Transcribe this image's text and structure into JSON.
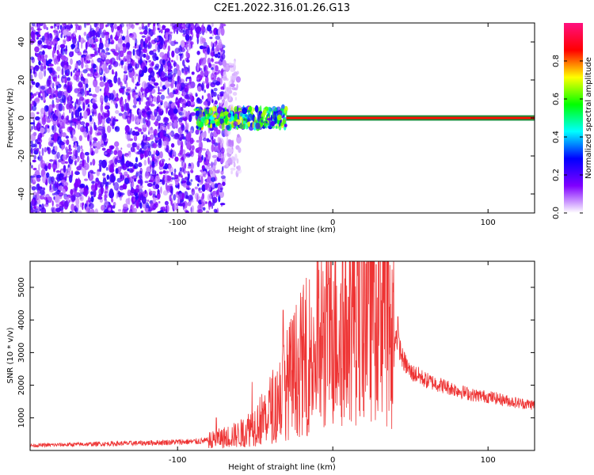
{
  "title": "C2E1.2022.316.01.26.G13",
  "chart_data": [
    {
      "type": "heatmap",
      "xlabel": "Height of straight line (km)",
      "ylabel": "Frequency (Hz)",
      "xlim": [
        -195,
        130
      ],
      "ylim": [
        -50,
        50
      ],
      "xticks": [
        -100,
        0,
        100
      ],
      "yticks": [
        -40,
        -20,
        0,
        20,
        40
      ],
      "xtick_labels": [
        "-100",
        "0",
        "100"
      ],
      "ytick_labels": [
        "-40",
        "-20",
        "0",
        "20",
        "40"
      ],
      "colorbar": {
        "label": "Normalized spectral amplitude",
        "range": [
          0.0,
          1.0
        ],
        "ticks": [
          0.0,
          0.2,
          0.4,
          0.6,
          0.8
        ],
        "tick_labels": [
          "0.0",
          "0.2",
          "0.4",
          "0.6",
          "0.8"
        ],
        "colors": [
          "#ffffff",
          "#8000ff",
          "#0000ff",
          "#00ffff",
          "#00ff00",
          "#ffff00",
          "#ff0000",
          "#ff1080"
        ]
      },
      "regions": [
        {
          "x_range": [
            -195,
            -90
          ],
          "freq_range": [
            -50,
            50
          ],
          "level": 0.15,
          "description": "broadband noise"
        },
        {
          "x_range": [
            -88,
            -70
          ],
          "freq_range": [
            -50,
            50
          ],
          "level": 0.15,
          "description": "broadband noise"
        },
        {
          "x_range": [
            -70,
            -60
          ],
          "freq_range": [
            -30,
            30
          ],
          "level": 0.05
        },
        {
          "x_range": [
            -88,
            -30
          ],
          "freq_range": [
            -5,
            5
          ],
          "level": 0.45
        },
        {
          "x_range": [
            -30,
            130
          ],
          "freq_range": [
            -1,
            1
          ],
          "level": 0.85
        }
      ]
    },
    {
      "type": "line",
      "xlabel": "Height of straight line (km)",
      "ylabel": "SNR (10 * v/v)",
      "xlim": [
        -195,
        130
      ],
      "ylim": [
        0,
        5800
      ],
      "xticks": [
        -100,
        0,
        100
      ],
      "yticks": [
        1000,
        2000,
        3000,
        4000,
        5000
      ],
      "xtick_labels": [
        "-100",
        "0",
        "100"
      ],
      "ytick_labels": [
        "1000",
        "2000",
        "3000",
        "4000",
        "5000"
      ],
      "color": "#ee3333",
      "series": [
        {
          "x": [
            -195,
            -180,
            -160,
            -140,
            -120,
            -100,
            -90,
            -80,
            -75,
            -70,
            -65,
            -60,
            -55,
            -50,
            -45,
            -40,
            -35,
            -30,
            -25,
            -20,
            -15,
            -10,
            -5,
            0,
            5,
            10,
            15,
            20,
            25,
            28,
            32,
            36,
            40,
            45,
            50,
            55,
            60,
            70,
            80,
            90,
            100,
            110,
            120,
            130
          ],
          "y": [
            150,
            170,
            190,
            210,
            230,
            260,
            270,
            300,
            350,
            400,
            450,
            500,
            650,
            800,
            1000,
            1300,
            1600,
            2000,
            2400,
            2700,
            3000,
            3300,
            3500,
            3700,
            3900,
            4300,
            4700,
            5000,
            5300,
            5450,
            5100,
            4500,
            3700,
            2800,
            2400,
            2300,
            2150,
            2000,
            1850,
            1700,
            1650,
            1550,
            1450,
            1400
          ],
          "peaks": [
            [
              -75,
              1000
            ],
            [
              -52,
              2100
            ],
            [
              -32,
              4300
            ],
            [
              -10,
              5800
            ],
            [
              -3,
              5100
            ],
            [
              5,
              4800
            ],
            [
              10,
              4700
            ],
            [
              28,
              5700
            ],
            [
              42,
              4100
            ]
          ]
        }
      ]
    }
  ]
}
